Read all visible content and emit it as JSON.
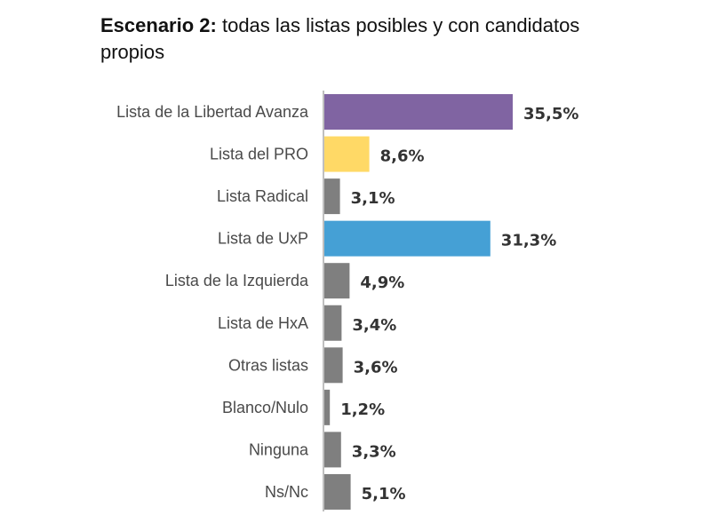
{
  "title": {
    "bold_part": "Escenario 2:",
    "rest": "todas las listas posibles y con candidatos propios"
  },
  "chart_data": {
    "type": "bar",
    "orientation": "horizontal",
    "title": "Escenario 2: todas las listas posibles y con candidatos propios",
    "categories": [
      "Lista de la Libertad Avanza",
      "Lista del PRO",
      "Lista Radical",
      "Lista de UxP",
      "Lista de la Izquierda",
      "Lista de HxA",
      "Otras listas",
      "Blanco/Nulo",
      "Ninguna",
      "Ns/Nc"
    ],
    "values": [
      35.5,
      8.6,
      3.1,
      31.3,
      4.9,
      3.4,
      3.6,
      1.2,
      3.3,
      5.1
    ],
    "value_labels": [
      "35,5%",
      "8,6%",
      "3,1%",
      "31,3%",
      "4,9%",
      "3,4%",
      "3,6%",
      "1,2%",
      "3,3%",
      "5,1%"
    ],
    "colors": [
      "#8064a2",
      "#ffd966",
      "#7f7f7f",
      "#45a0d5",
      "#7f7f7f",
      "#7f7f7f",
      "#7f7f7f",
      "#7f7f7f",
      "#7f7f7f",
      "#7f7f7f"
    ],
    "axis_color": "#bfbfbf",
    "xlim": [
      0,
      35.5
    ],
    "xlabel": "",
    "ylabel": "",
    "grid": false,
    "legend": "none"
  }
}
